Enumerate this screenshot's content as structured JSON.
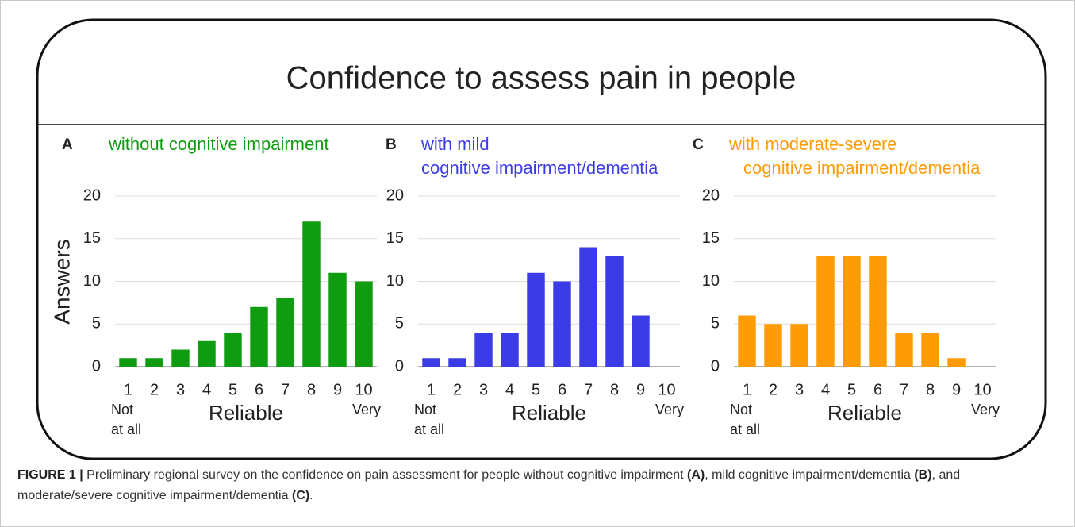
{
  "title": "Confidence to assess pain in people",
  "caption": [
    "FIGURE 1 |",
    " Preliminary regional survey on the confidence on pain assessment for people without cognitive impairment ",
    "(A)",
    ", mild cognitive impairment/dementia ",
    "(B)",
    ", and moderate/severe cognitive impairment/dementia ",
    "(C)",
    "."
  ],
  "chart_data": [
    {
      "type": "bar",
      "panel": "A",
      "subtitle": [
        "without cognitive impairment"
      ],
      "color": "#109c10",
      "ylabel": "Answers",
      "xlabel": "Reliable",
      "low_label": [
        "Not",
        "at all"
      ],
      "high_label": "Very",
      "categories": [
        "1",
        "2",
        "3",
        "4",
        "5",
        "6",
        "7",
        "8",
        "9",
        "10"
      ],
      "values": [
        1,
        1,
        2,
        3,
        4,
        7,
        8,
        17,
        11,
        10
      ],
      "ylim": [
        0,
        20
      ],
      "yticks": [
        0,
        5,
        10,
        15,
        20
      ],
      "grid": true
    },
    {
      "type": "bar",
      "panel": "B",
      "subtitle": [
        "with mild",
        "cognitive impairment/dementia"
      ],
      "color": "#3c3ce6",
      "xlabel": "Reliable",
      "low_label": [
        "Not",
        "at all"
      ],
      "high_label": "Very",
      "categories": [
        "1",
        "2",
        "3",
        "4",
        "5",
        "6",
        "7",
        "8",
        "9",
        "10"
      ],
      "values": [
        1,
        1,
        4,
        4,
        11,
        10,
        14,
        13,
        6,
        0
      ],
      "ylim": [
        0,
        20
      ],
      "yticks": [
        0,
        5,
        10,
        15,
        20
      ],
      "grid": true
    },
    {
      "type": "bar",
      "panel": "C",
      "subtitle": [
        "with moderate-severe",
        "cognitive impairment/dementia"
      ],
      "color": "#ff9b05",
      "xlabel": "Reliable",
      "low_label": [
        "Not",
        "at all"
      ],
      "high_label": "Very",
      "categories": [
        "1",
        "2",
        "3",
        "4",
        "5",
        "6",
        "7",
        "8",
        "9",
        "10"
      ],
      "values": [
        6,
        5,
        5,
        13,
        13,
        13,
        4,
        4,
        1,
        0
      ],
      "ylim": [
        0,
        20
      ],
      "yticks": [
        0,
        5,
        10,
        15,
        20
      ],
      "grid": true
    }
  ]
}
